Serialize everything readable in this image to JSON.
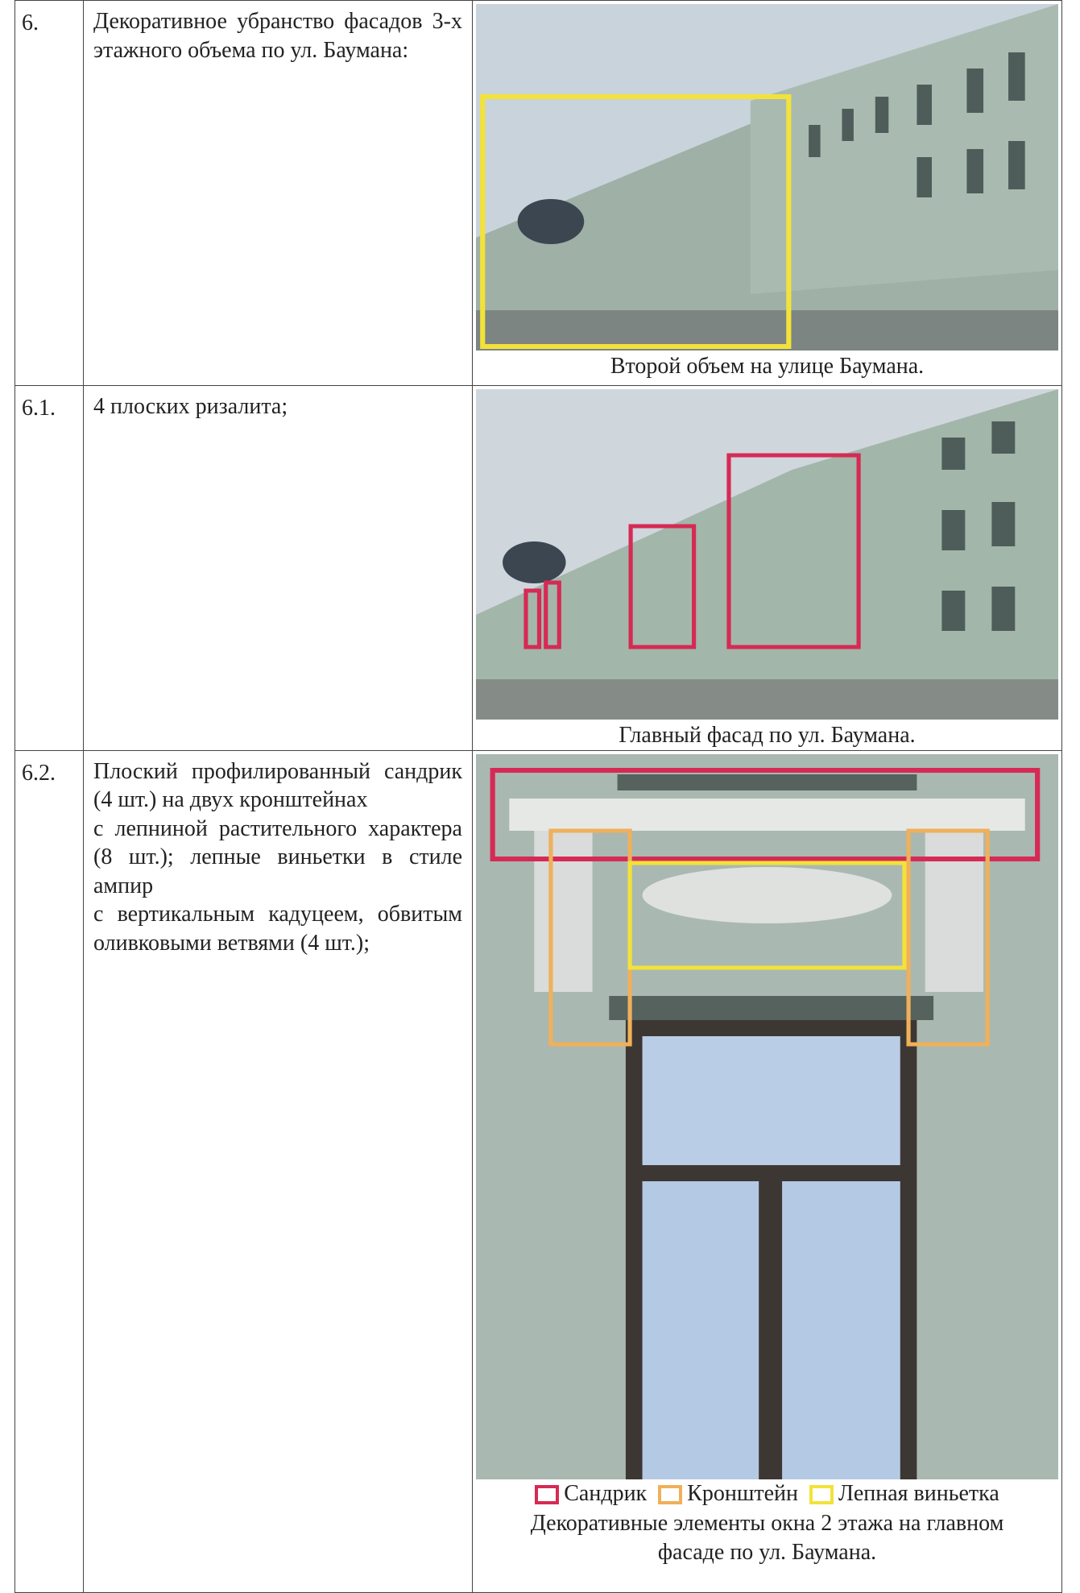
{
  "table": {
    "rows": [
      {
        "number": "6.",
        "description": [
          "Декоративное убранство фасадов 3-х этажного объема по ул. Баумана:"
        ],
        "caption": "Второй объем на улице Баумана."
      },
      {
        "number": "6.1.",
        "description": [
          "4 плоских ризалита;"
        ],
        "caption": "Главный фасад по ул. Баумана."
      },
      {
        "number": "6.2.",
        "description": [
          "Плоский профилированный сандрик (4 шт.) на двух кронштейнах",
          "с лепниной растительного характера (8 шт.); лепные виньетки в стиле ампир",
          "с вертикальным кадуцеем, обвитым оливковыми ветвями (4 шт.);"
        ],
        "legend": [
          "Сандрик",
          "Кронштейн",
          "Лепная виньетка"
        ],
        "caption": "Декоративные элементы окна 2 этажа на главном фасаде по ул. Баумана."
      }
    ]
  }
}
